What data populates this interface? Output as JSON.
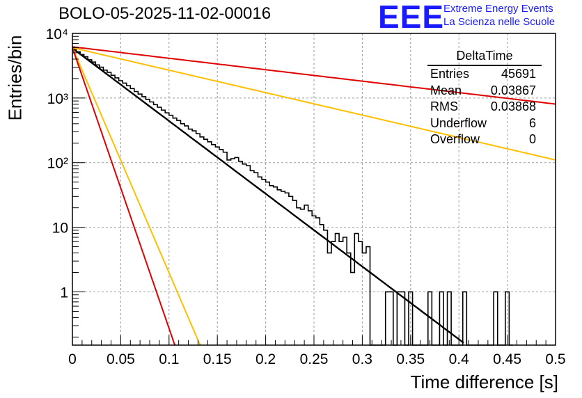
{
  "header": {
    "title": "BOLO-05-2025-11-02-00016",
    "logo": "EEE",
    "logo_line1": "Extreme Energy Events",
    "logo_line2": "La Scienza nelle Scuole"
  },
  "stats": {
    "title": "DeltaTime",
    "rows": [
      {
        "label": "Entries",
        "value": "45691"
      },
      {
        "label": "Mean",
        "value": "0.03867"
      },
      {
        "label": "RMS",
        "value": "0.03868"
      },
      {
        "label": "Underflow",
        "value": "6"
      },
      {
        "label": "Overflow",
        "value": "0"
      }
    ]
  },
  "chart_data": {
    "type": "histogram",
    "title": "BOLO-05-2025-11-02-00016",
    "xlabel": "Time difference [s]",
    "ylabel": "Entries/bin",
    "xlim": [
      0,
      0.5
    ],
    "ylim": [
      0.15,
      10000
    ],
    "yscale": "log",
    "grid": true,
    "legend": "top-right",
    "x_ticks": [
      "0",
      "0.05",
      "0.1",
      "0.15",
      "0.2",
      "0.25",
      "0.3",
      "0.35",
      "0.4",
      "0.45",
      "0.5"
    ],
    "y_ticks": [
      "1",
      "10",
      "10²",
      "10³",
      "10⁴"
    ],
    "bin_width": 0.004,
    "histogram_bins": [
      [
        0.0,
        5600
      ],
      [
        0.004,
        5200
      ],
      [
        0.008,
        4700
      ],
      [
        0.012,
        4350
      ],
      [
        0.016,
        3900
      ],
      [
        0.02,
        3600
      ],
      [
        0.024,
        3250
      ],
      [
        0.028,
        3000
      ],
      [
        0.032,
        2700
      ],
      [
        0.036,
        2500
      ],
      [
        0.04,
        2250
      ],
      [
        0.044,
        2050
      ],
      [
        0.048,
        1850
      ],
      [
        0.052,
        1700
      ],
      [
        0.056,
        1550
      ],
      [
        0.06,
        1400
      ],
      [
        0.064,
        1260
      ],
      [
        0.068,
        1150
      ],
      [
        0.072,
        1050
      ],
      [
        0.076,
        950
      ],
      [
        0.08,
        870
      ],
      [
        0.084,
        790
      ],
      [
        0.088,
        720
      ],
      [
        0.092,
        650
      ],
      [
        0.096,
        590
      ],
      [
        0.1,
        540
      ],
      [
        0.104,
        490
      ],
      [
        0.108,
        450
      ],
      [
        0.112,
        400
      ],
      [
        0.116,
        370
      ],
      [
        0.12,
        330
      ],
      [
        0.124,
        310
      ],
      [
        0.128,
        280
      ],
      [
        0.132,
        250
      ],
      [
        0.136,
        230
      ],
      [
        0.14,
        210
      ],
      [
        0.144,
        190
      ],
      [
        0.148,
        175
      ],
      [
        0.152,
        160
      ],
      [
        0.156,
        145
      ],
      [
        0.16,
        110
      ],
      [
        0.164,
        115
      ],
      [
        0.168,
        120
      ],
      [
        0.172,
        105
      ],
      [
        0.176,
        95
      ],
      [
        0.18,
        90
      ],
      [
        0.184,
        75
      ],
      [
        0.188,
        70
      ],
      [
        0.192,
        60
      ],
      [
        0.196,
        55
      ],
      [
        0.2,
        50
      ],
      [
        0.204,
        44
      ],
      [
        0.208,
        42
      ],
      [
        0.212,
        38
      ],
      [
        0.216,
        36
      ],
      [
        0.22,
        34
      ],
      [
        0.224,
        30
      ],
      [
        0.228,
        26
      ],
      [
        0.232,
        20
      ],
      [
        0.236,
        19
      ],
      [
        0.24,
        22
      ],
      [
        0.244,
        18
      ],
      [
        0.248,
        15
      ],
      [
        0.252,
        14
      ],
      [
        0.256,
        11
      ],
      [
        0.26,
        9
      ],
      [
        0.264,
        4
      ],
      [
        0.268,
        6
      ],
      [
        0.272,
        8
      ],
      [
        0.276,
        6
      ],
      [
        0.28,
        7
      ],
      [
        0.284,
        4
      ],
      [
        0.288,
        2
      ],
      [
        0.292,
        8
      ],
      [
        0.296,
        6
      ],
      [
        0.3,
        4
      ],
      [
        0.304,
        5
      ],
      [
        0.308,
        0
      ],
      [
        0.312,
        0
      ],
      [
        0.316,
        0
      ],
      [
        0.32,
        0
      ],
      [
        0.324,
        1
      ],
      [
        0.328,
        1
      ],
      [
        0.332,
        0
      ],
      [
        0.336,
        1
      ],
      [
        0.34,
        1
      ],
      [
        0.344,
        0
      ],
      [
        0.348,
        1
      ],
      [
        0.352,
        0
      ],
      [
        0.356,
        0
      ],
      [
        0.36,
        0
      ],
      [
        0.364,
        0
      ],
      [
        0.368,
        1
      ],
      [
        0.372,
        0
      ],
      [
        0.376,
        0
      ],
      [
        0.38,
        1
      ],
      [
        0.384,
        0
      ],
      [
        0.388,
        1
      ],
      [
        0.392,
        0
      ],
      [
        0.396,
        0
      ],
      [
        0.4,
        0
      ],
      [
        0.404,
        1
      ],
      [
        0.408,
        0
      ],
      [
        0.412,
        0
      ],
      [
        0.416,
        0
      ],
      [
        0.42,
        0
      ],
      [
        0.424,
        0
      ],
      [
        0.428,
        0
      ],
      [
        0.432,
        0
      ],
      [
        0.436,
        1
      ],
      [
        0.44,
        0
      ],
      [
        0.444,
        0
      ],
      [
        0.448,
        1
      ],
      [
        0.452,
        0
      ]
    ],
    "fit_lines": [
      {
        "name": "fit",
        "color": "#000000",
        "y0": 5900,
        "slope_per_s": 25.93,
        "x_end": 0.405
      },
      {
        "name": "upper-red",
        "color": "#e00000",
        "y0": 6200,
        "slope_per_s": 4.08,
        "x_end": 0.5
      },
      {
        "name": "upper-orange",
        "color": "#ffbf00",
        "y0": 6000,
        "slope_per_s": 8.0,
        "x_end": 0.5
      },
      {
        "name": "lower-orange",
        "color": "#ffbf00",
        "y0": 6000,
        "slope_per_s": 80.2,
        "x_end": 0.135
      },
      {
        "name": "lower-red",
        "color": "#e00000",
        "y0": 6000,
        "slope_per_s": 100.0,
        "x_end": 0.11
      }
    ]
  }
}
